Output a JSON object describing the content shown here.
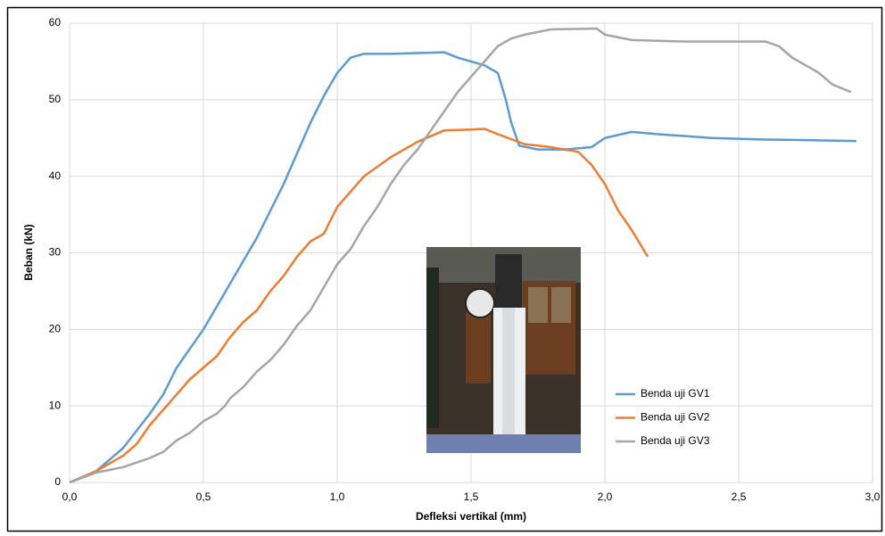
{
  "chart_data": {
    "type": "line",
    "xlabel": "Defleksi vertikal (mm)",
    "ylabel": "Beban (kN)",
    "xlim": [
      0,
      3
    ],
    "ylim": [
      0,
      60
    ],
    "xticks": [
      {
        "value": 0,
        "label": "0,0"
      },
      {
        "value": 0.5,
        "label": "0,5"
      },
      {
        "value": 1,
        "label": "1,0"
      },
      {
        "value": 1.5,
        "label": "1,5"
      },
      {
        "value": 2,
        "label": "2,0"
      },
      {
        "value": 2.5,
        "label": "2,5"
      },
      {
        "value": 3,
        "label": "3,0"
      }
    ],
    "yticks": [
      0,
      10,
      20,
      30,
      40,
      50,
      60
    ],
    "grid": true,
    "legend": "right",
    "series": [
      {
        "name": "Benda uji GV1",
        "color": "#5b9bd5",
        "x": [
          0,
          0.1,
          0.2,
          0.3,
          0.35,
          0.4,
          0.45,
          0.5,
          0.55,
          0.6,
          0.65,
          0.7,
          0.75,
          0.8,
          0.85,
          0.9,
          0.95,
          1.0,
          1.05,
          1.1,
          1.2,
          1.3,
          1.4,
          1.45,
          1.5,
          1.55,
          1.6,
          1.63,
          1.65,
          1.68,
          1.75,
          1.85,
          1.95,
          2.0,
          2.1,
          2.2,
          2.4,
          2.6,
          2.8,
          2.94
        ],
        "values": [
          0,
          1.5,
          4.5,
          9,
          11.5,
          15,
          17.5,
          20,
          23,
          26,
          29,
          32,
          35.5,
          39,
          43,
          47,
          50.5,
          53.5,
          55.5,
          56,
          56,
          56.1,
          56.2,
          55.5,
          55,
          54.5,
          53.5,
          50,
          47,
          44,
          43.5,
          43.5,
          43.8,
          45,
          45.8,
          45.5,
          45,
          44.8,
          44.7,
          44.6
        ]
      },
      {
        "name": "Benda uji GV2",
        "color": "#ed7d31",
        "x": [
          0,
          0.1,
          0.2,
          0.25,
          0.3,
          0.35,
          0.4,
          0.45,
          0.5,
          0.55,
          0.6,
          0.65,
          0.7,
          0.75,
          0.8,
          0.85,
          0.9,
          0.95,
          1.0,
          1.05,
          1.1,
          1.2,
          1.3,
          1.4,
          1.5,
          1.55,
          1.6,
          1.7,
          1.8,
          1.9,
          1.95,
          2.0,
          2.05,
          2.1,
          2.16
        ],
        "values": [
          0,
          1.5,
          3.5,
          5,
          7.5,
          9.5,
          11.5,
          13.5,
          15,
          16.5,
          19,
          21,
          22.5,
          25,
          27,
          29.5,
          31.5,
          32.5,
          36,
          38,
          40,
          42.5,
          44.5,
          46,
          46.1,
          46.2,
          45.5,
          44.2,
          43.8,
          43.2,
          41.5,
          39,
          35.5,
          33,
          29.5
        ]
      },
      {
        "name": "Benda uji GV3",
        "color": "#a5a5a5",
        "x": [
          0,
          0.1,
          0.2,
          0.3,
          0.35,
          0.4,
          0.45,
          0.5,
          0.55,
          0.58,
          0.6,
          0.65,
          0.7,
          0.75,
          0.8,
          0.85,
          0.9,
          0.95,
          1.0,
          1.05,
          1.1,
          1.15,
          1.2,
          1.25,
          1.3,
          1.35,
          1.4,
          1.45,
          1.5,
          1.55,
          1.6,
          1.65,
          1.7,
          1.8,
          1.97,
          2.0,
          2.1,
          2.3,
          2.6,
          2.65,
          2.7,
          2.8,
          2.85,
          2.92
        ],
        "values": [
          0,
          1.3,
          2,
          3.2,
          4,
          5.5,
          6.5,
          8,
          9,
          10,
          11,
          12.5,
          14.5,
          16,
          18,
          20.5,
          22.5,
          25.5,
          28.5,
          30.5,
          33.5,
          36,
          39,
          41.5,
          43.5,
          46,
          48.5,
          51,
          53,
          55,
          57,
          58,
          58.5,
          59.2,
          59.3,
          58.5,
          57.8,
          57.6,
          57.6,
          57,
          55.5,
          53.5,
          52,
          51
        ]
      }
    ]
  }
}
